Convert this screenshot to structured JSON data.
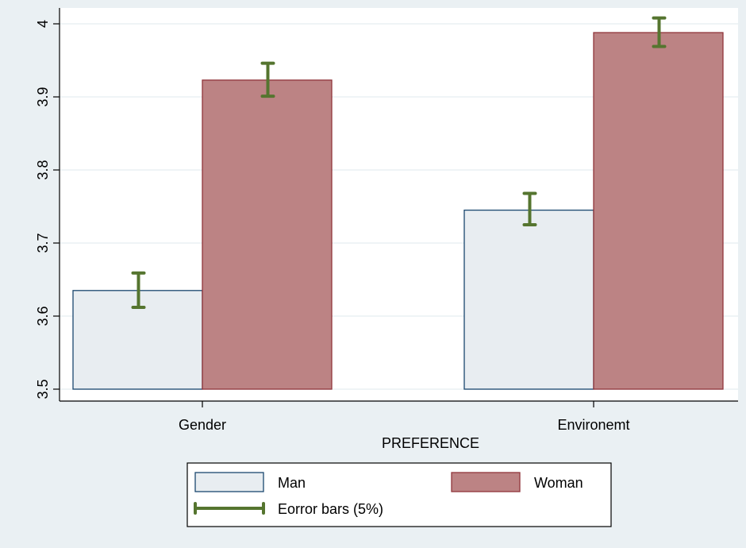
{
  "chart_data": {
    "type": "bar",
    "title": "",
    "xlabel": "PREFERENCE",
    "ylabel": "",
    "categories": [
      "Gender",
      "Environemt"
    ],
    "series": [
      {
        "name": "Man",
        "values": [
          3.635,
          3.745
        ],
        "error_low": [
          3.612,
          3.725
        ],
        "error_high": [
          3.659,
          3.768
        ]
      },
      {
        "name": "Woman",
        "values": [
          3.923,
          3.988
        ],
        "error_low": [
          3.901,
          3.969
        ],
        "error_high": [
          3.946,
          4.008
        ]
      }
    ],
    "error_bar_label": "Eorror bars (5%)",
    "ylim": [
      3.5,
      4.0
    ],
    "yticks": [
      3.5,
      3.6,
      3.7,
      3.8,
      3.9,
      4.0
    ],
    "ytick_labels": [
      "3.5",
      "3.6",
      "3.7",
      "3.8",
      "3.9",
      "4"
    ],
    "grid": true,
    "legend_position": "bottom",
    "colors": {
      "background": "#eaf0f3",
      "plot_area": "#ffffff",
      "grid": "#eaf0f3",
      "man_fill": "#e8edf1",
      "man_stroke": "#1a476f",
      "woman_fill": "#bc8384",
      "woman_stroke": "#90353b",
      "error_bar": "#55752f"
    }
  }
}
